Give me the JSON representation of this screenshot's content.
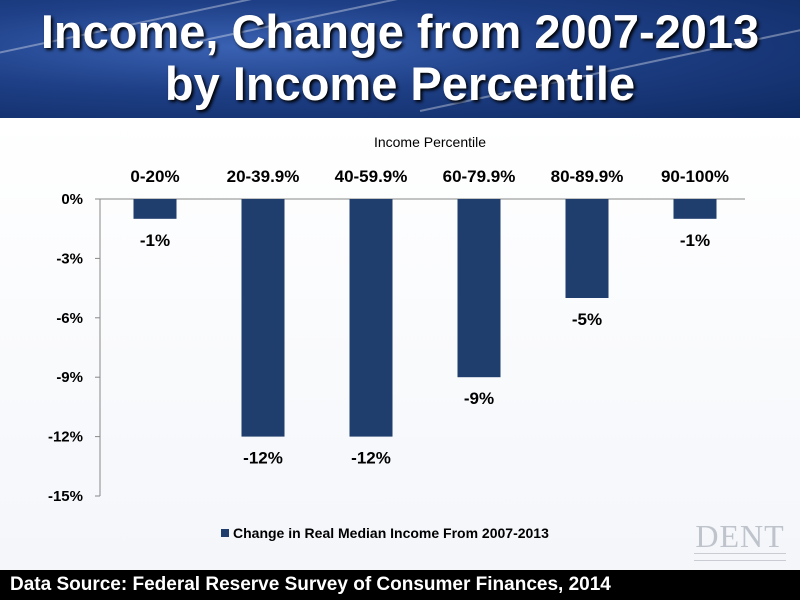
{
  "title": {
    "line1": "Income, Change from 2007-2013",
    "line2": "by Income Percentile"
  },
  "footer": {
    "source": "Data Source: Federal Reserve Survey of Consumer Finances, 2014"
  },
  "logo": {
    "text": "DENT"
  },
  "colors": {
    "bar": "#1f3d6d",
    "header": "#1e3f86",
    "footer": "#000000"
  },
  "chart_data": {
    "type": "bar",
    "title": "",
    "xlabel": "Income Percentile",
    "ylabel": "",
    "categories": [
      "0-20%",
      "20-39.9%",
      "40-59.9%",
      "60-79.9%",
      "80-89.9%",
      "90-100%"
    ],
    "series": [
      {
        "name": "Change in Real Median Income From 2007-2013",
        "values": [
          -1,
          -12,
          -12,
          -9,
          -5,
          -1
        ],
        "labels": [
          "-1%",
          "-12%",
          "-12%",
          "-9%",
          "-5%",
          "-1%"
        ]
      }
    ],
    "yticks": [
      0,
      -3,
      -6,
      -9,
      -12,
      -15
    ],
    "ytick_labels": [
      "0%",
      "-3%",
      "-6%",
      "-9%",
      "-12%",
      "-15%"
    ],
    "ylim": [
      -15,
      0
    ],
    "x_axis_position": "top",
    "grid": false,
    "legend": "bottom"
  }
}
